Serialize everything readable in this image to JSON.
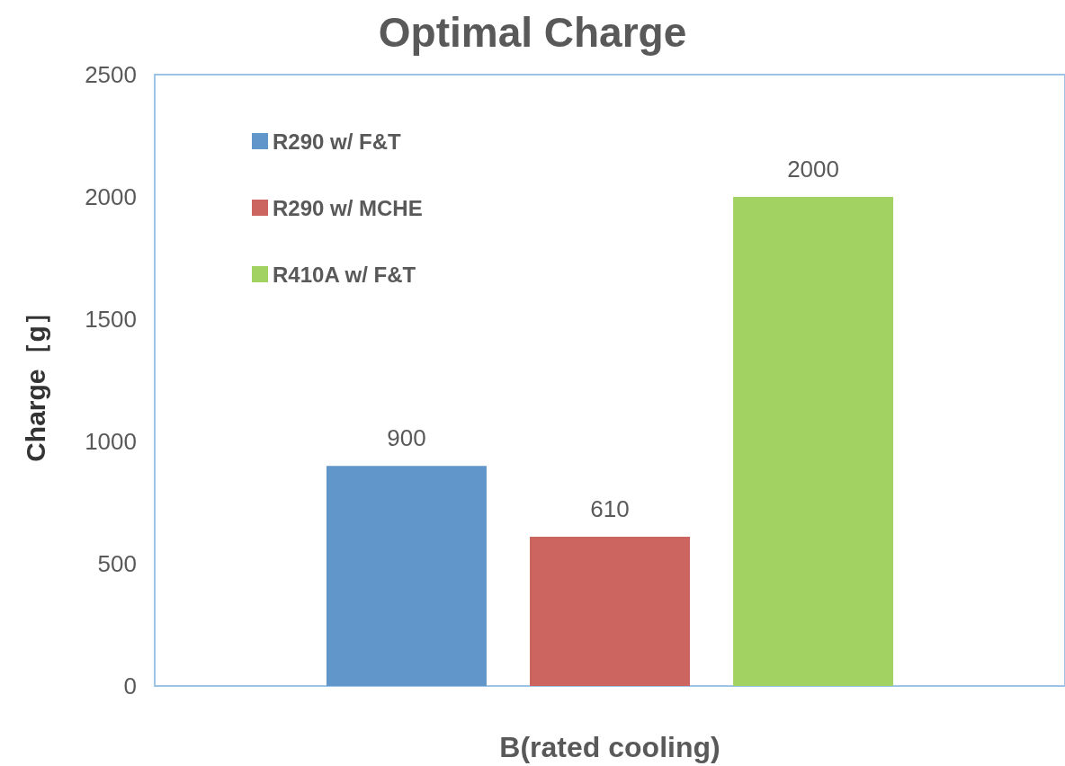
{
  "chart_data": {
    "type": "bar",
    "title": "Optimal Charge",
    "ylabel": "Charge［g］",
    "xlabel": "B(rated cooling)",
    "categories": [
      null
    ],
    "series": [
      {
        "name": "R290 w/ F&T",
        "color": "#6096c9",
        "values": [
          900
        ]
      },
      {
        "name": "R290 w/ MCHE",
        "color": "#cc655f",
        "values": [
          610
        ]
      },
      {
        "name": "R410A w/ F&T",
        "color": "#a2d362",
        "values": [
          2000
        ]
      }
    ],
    "ylim": [
      0,
      2500
    ],
    "yticks": [
      0,
      500,
      1000,
      1500,
      2000,
      2500
    ],
    "grid": false,
    "legend": "top left",
    "data_labels": true
  }
}
